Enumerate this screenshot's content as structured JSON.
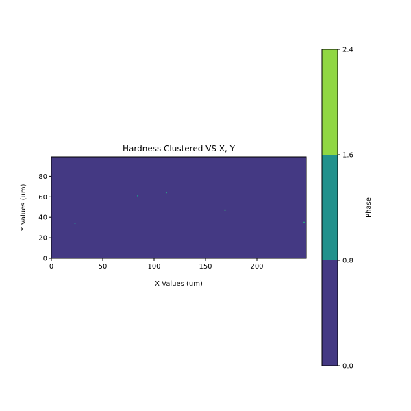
{
  "chart_data": {
    "type": "heatmap",
    "title": "Hardness Clustered VS X, Y",
    "xlabel": "X Values (um)",
    "ylabel": "Y Values (um)",
    "xlim": [
      0,
      248
    ],
    "ylim": [
      0,
      99
    ],
    "xticks": [
      0,
      50,
      100,
      150,
      200
    ],
    "yticks": [
      0,
      20,
      40,
      60,
      80
    ],
    "background_phase_color": "#443983",
    "points": [
      {
        "x": 23,
        "y": 34,
        "color": "#2e7f8e"
      },
      {
        "x": 84,
        "y": 61,
        "color": "#21918c"
      },
      {
        "x": 112,
        "y": 64,
        "color": "#2e9e89"
      },
      {
        "x": 169,
        "y": 47,
        "color": "#35b779"
      },
      {
        "x": 246,
        "y": 35,
        "color": "#28ae80"
      }
    ],
    "colorbar": {
      "label": "Phase",
      "range": [
        0.0,
        2.4
      ],
      "ticks": [
        "0.0",
        "0.8",
        "1.6",
        "2.4"
      ],
      "levels": [
        {
          "from": 0.0,
          "to": 0.8,
          "color": "#443983"
        },
        {
          "from": 0.8,
          "to": 1.6,
          "color": "#21918c"
        },
        {
          "from": 1.6,
          "to": 2.4,
          "color": "#90d743"
        }
      ]
    }
  }
}
